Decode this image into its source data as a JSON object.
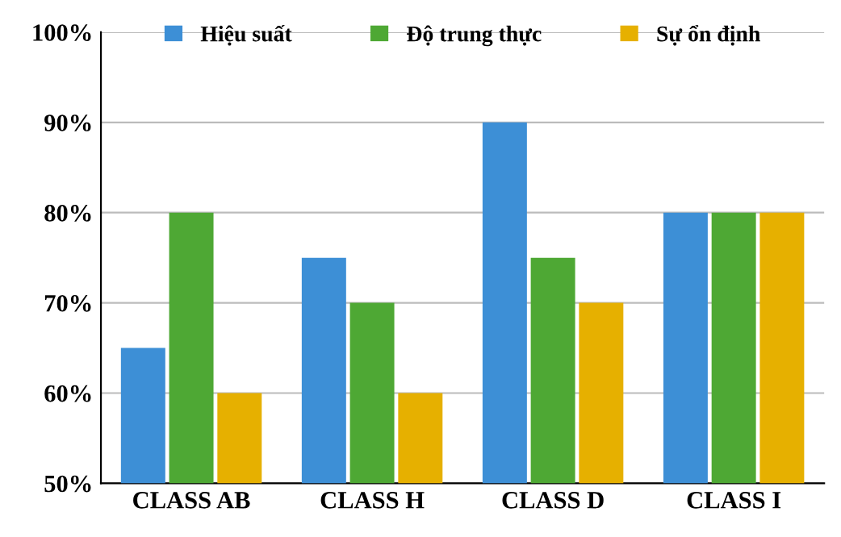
{
  "chart_data": {
    "type": "bar",
    "categories": [
      "CLASS AB",
      "CLASS H",
      "CLASS D",
      "CLASS I"
    ],
    "series": [
      {
        "name": "Hiệu suất",
        "color": "#3d8fd6",
        "values": [
          65,
          75,
          90,
          80
        ]
      },
      {
        "name": "Độ trung thực",
        "color": "#4ea834",
        "values": [
          80,
          70,
          75,
          80
        ]
      },
      {
        "name": "Sự ổn định",
        "color": "#e6b000",
        "values": [
          60,
          60,
          70,
          80
        ]
      }
    ],
    "ylim": [
      50,
      100
    ],
    "yticks": [
      {
        "value": 50,
        "label": "50%"
      },
      {
        "value": 60,
        "label": "60%"
      },
      {
        "value": 70,
        "label": "70%"
      },
      {
        "value": 80,
        "label": "80%"
      },
      {
        "value": 90,
        "label": "90%"
      },
      {
        "value": 100,
        "label": "100%"
      }
    ],
    "grid": "y",
    "legend": "top"
  }
}
